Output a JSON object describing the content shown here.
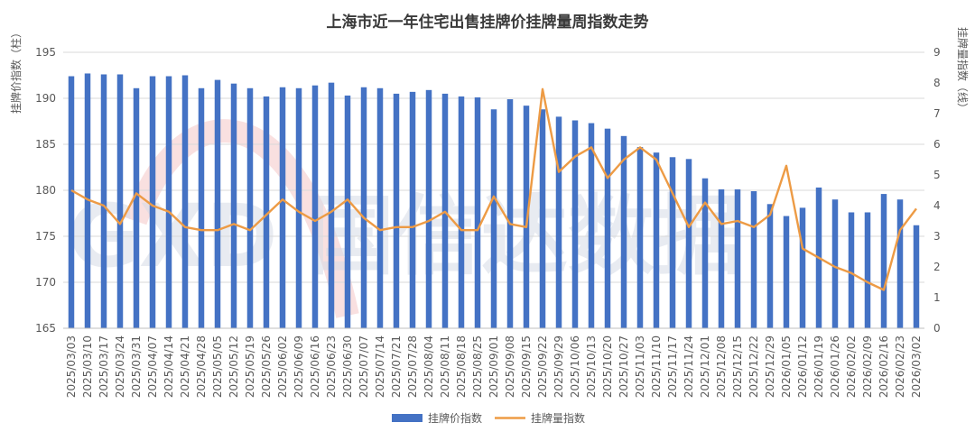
{
  "chart_data": {
    "type": "bar+line",
    "title": "上海市近一年住宅出售挂牌价挂牌量周指数走势",
    "ylabel_left": "挂牌价指数（柱）",
    "ylabel_right": "挂牌量指数（线）",
    "ylim_left": [
      165,
      195
    ],
    "yticks_left": [
      165,
      170,
      175,
      180,
      185,
      190,
      195
    ],
    "ylim_right": [
      0,
      9
    ],
    "yticks_right": [
      0,
      1,
      2,
      3,
      4,
      5,
      6,
      7,
      8,
      9
    ],
    "grid": true,
    "legend_position": "bottom-center",
    "watermark_text": "GXD 国信达数据",
    "colors": {
      "bar": "#4472c4",
      "line": "#ed9b45",
      "grid": "#d9d9d9"
    },
    "categories": [
      "2025/03/03",
      "2025/03/10",
      "2025/03/17",
      "2025/03/24",
      "2025/03/31",
      "2025/04/07",
      "2025/04/14",
      "2025/04/21",
      "2025/04/28",
      "2025/05/05",
      "2025/05/12",
      "2025/05/19",
      "2025/05/26",
      "2025/06/02",
      "2025/06/09",
      "2025/06/16",
      "2025/06/23",
      "2025/06/30",
      "2025/07/07",
      "2025/07/14",
      "2025/07/21",
      "2025/07/28",
      "2025/08/04",
      "2025/08/11",
      "2025/08/18",
      "2025/08/25",
      "2025/09/01",
      "2025/09/08",
      "2025/09/15",
      "2025/09/22",
      "2025/09/29",
      "2025/10/06",
      "2025/10/13",
      "2025/10/20",
      "2025/10/27",
      "2025/11/03",
      "2025/11/10",
      "2025/11/17",
      "2025/11/24",
      "2025/12/01",
      "2025/12/08",
      "2025/12/15",
      "2025/12/22",
      "2025/12/29",
      "2026/01/05",
      "2026/01/12",
      "2026/01/19",
      "2026/01/26",
      "2026/02/02",
      "2026/02/09",
      "2026/02/16",
      "2026/02/23",
      "2026/03/02"
    ],
    "series": [
      {
        "name": "挂牌价指数",
        "type": "bar",
        "axis": "left",
        "values": [
          192.4,
          192.7,
          192.6,
          192.6,
          191.1,
          192.4,
          192.4,
          192.5,
          191.1,
          192.0,
          191.6,
          191.1,
          190.2,
          191.2,
          191.1,
          191.4,
          191.7,
          190.3,
          191.2,
          191.1,
          190.5,
          190.7,
          190.9,
          190.5,
          190.2,
          190.1,
          188.8,
          189.9,
          189.2,
          188.8,
          188.0,
          187.6,
          187.3,
          186.7,
          185.9,
          184.7,
          184.1,
          183.6,
          183.4,
          181.3,
          180.1,
          180.1,
          179.9,
          178.5,
          177.2,
          178.1,
          180.3,
          179.0,
          177.6,
          177.6,
          179.6,
          179.0,
          176.2
        ]
      },
      {
        "name": "挂牌量指数",
        "type": "line",
        "axis": "right",
        "values": [
          4.5,
          4.2,
          4.0,
          3.4,
          4.4,
          4.0,
          3.8,
          3.3,
          3.2,
          3.2,
          3.4,
          3.2,
          3.7,
          4.2,
          3.8,
          3.5,
          3.8,
          4.2,
          3.6,
          3.2,
          3.3,
          3.3,
          3.5,
          3.8,
          3.2,
          3.2,
          4.3,
          3.4,
          3.3,
          7.8,
          5.1,
          5.6,
          5.9,
          4.9,
          5.5,
          5.9,
          5.5,
          4.4,
          3.3,
          4.1,
          3.4,
          3.5,
          3.3,
          3.7,
          5.3,
          2.6,
          2.3,
          2.0,
          1.8,
          1.5,
          1.25,
          3.2,
          3.9
        ]
      }
    ]
  }
}
